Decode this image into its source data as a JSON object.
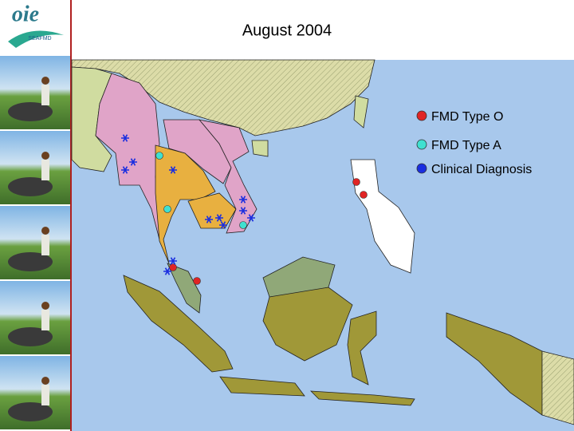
{
  "header": {
    "title": "August 2004"
  },
  "logo": {
    "name": "oie",
    "program": "SEAFMD"
  },
  "legend": {
    "items": [
      {
        "label": "FMD Type O",
        "color": "#e02424"
      },
      {
        "label": "FMD Type A",
        "color": "#40e0d0"
      },
      {
        "label": "Clinical Diagnosis",
        "color": "#1a2ee0"
      }
    ]
  }
}
